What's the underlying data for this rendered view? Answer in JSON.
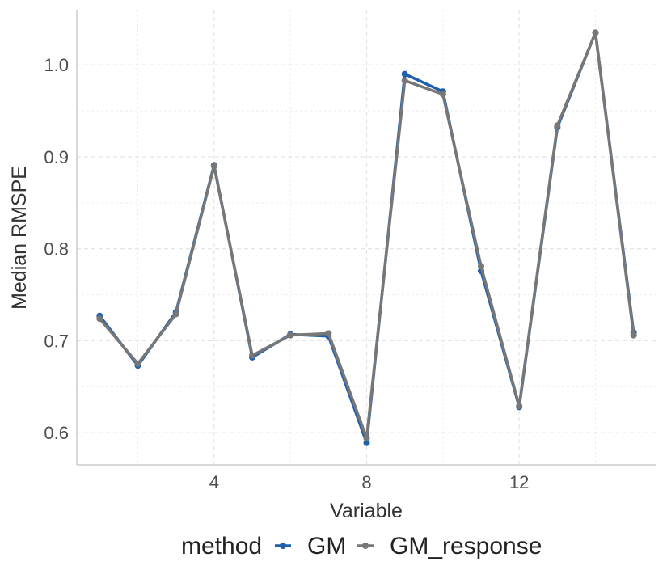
{
  "chart_data": {
    "type": "line",
    "title": "",
    "xlabel": "Variable",
    "ylabel": "Median RMSPE",
    "xlim": [
      0.4,
      15.6
    ],
    "ylim": [
      0.565,
      1.06
    ],
    "x_ticks": [
      4,
      8,
      12
    ],
    "y_ticks": [
      0.6,
      0.7,
      0.8,
      0.9,
      1.0
    ],
    "x_tick_labels": [
      "4",
      "8",
      "12"
    ],
    "y_tick_labels": [
      "0.6",
      "0.7",
      "0.8",
      "0.9",
      "1.0"
    ],
    "grid": true,
    "legend": {
      "title": "method",
      "position": "bottom",
      "entries": [
        "GM",
        "GM_response"
      ]
    },
    "x": [
      1,
      2,
      3,
      4,
      5,
      6,
      7,
      8,
      9,
      10,
      11,
      12,
      13,
      14,
      15
    ],
    "series": [
      {
        "name": "GM",
        "color": "#1f5fae",
        "values": [
          0.727,
          0.673,
          0.731,
          0.891,
          0.682,
          0.707,
          0.705,
          0.589,
          0.99,
          0.971,
          0.776,
          0.628,
          0.932,
          1.035,
          0.709
        ]
      },
      {
        "name": "GM_response",
        "color": "#777777",
        "values": [
          0.724,
          0.675,
          0.729,
          0.89,
          0.684,
          0.706,
          0.708,
          0.594,
          0.983,
          0.968,
          0.781,
          0.629,
          0.934,
          1.035,
          0.706
        ]
      }
    ]
  }
}
